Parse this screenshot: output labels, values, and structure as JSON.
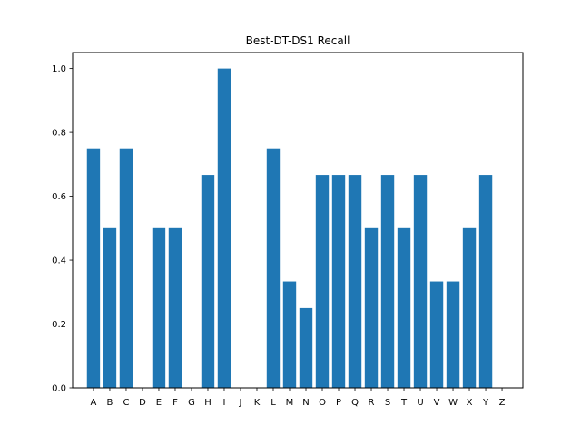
{
  "chart_data": {
    "type": "bar",
    "title": "Best-DT-DS1 Recall",
    "xlabel": "",
    "ylabel": "",
    "categories": [
      "A",
      "B",
      "C",
      "D",
      "E",
      "F",
      "G",
      "H",
      "I",
      "J",
      "K",
      "L",
      "M",
      "N",
      "O",
      "P",
      "Q",
      "R",
      "S",
      "T",
      "U",
      "V",
      "W",
      "X",
      "Y",
      "Z"
    ],
    "values": [
      0.75,
      0.5,
      0.75,
      0,
      0.5,
      0.5,
      0,
      0.6667,
      1.0,
      0,
      0,
      0.75,
      0.3333,
      0.25,
      0.6667,
      0.6667,
      0.6667,
      0.5,
      0.6667,
      0.5,
      0.6667,
      0.3333,
      0.3333,
      0.5,
      0.6667,
      0
    ],
    "ylim": [
      0,
      1.05
    ],
    "yticks": [
      "0.0",
      "0.2",
      "0.4",
      "0.6",
      "0.8",
      "1.0"
    ],
    "bar_color": "#1f77b4",
    "grid": false,
    "legend": "none"
  }
}
